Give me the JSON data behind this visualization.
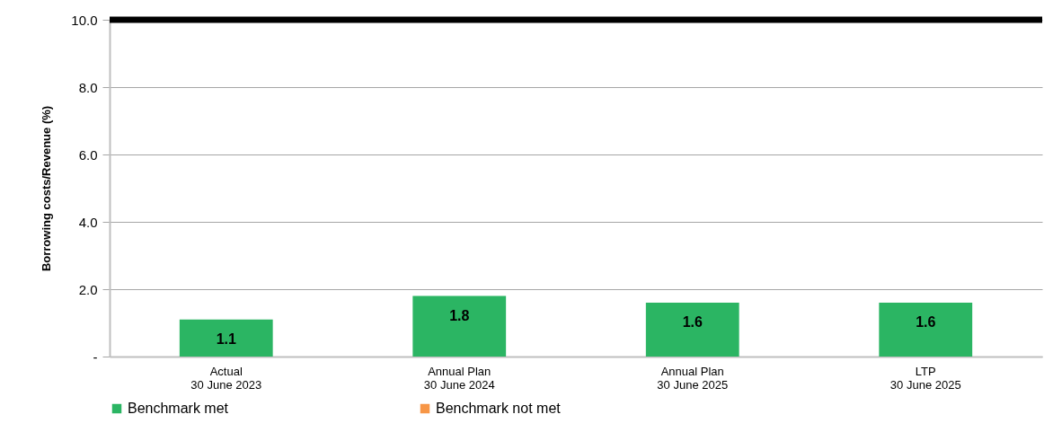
{
  "chart_data": {
    "type": "bar",
    "ylabel": "Borrowing costs/Revenue (%)",
    "categories": [
      "Actual\n30 June 2023",
      "Annual Plan\n30 June 2024",
      "Annual Plan\n30 June 2025",
      "LTP\n30 June 2025"
    ],
    "series": [
      {
        "name": "Benchmark met",
        "color": "#2bb563",
        "values": [
          1.1,
          1.8,
          1.6,
          1.6
        ]
      },
      {
        "name": "Benchmark not met",
        "color": "#f79646",
        "values": [
          null,
          null,
          null,
          null
        ]
      }
    ],
    "ylim": [
      0,
      10
    ],
    "yticks": [
      {
        "value": 0,
        "label": "-"
      },
      {
        "value": 2,
        "label": "2.0"
      },
      {
        "value": 4,
        "label": "4.0"
      },
      {
        "value": 6,
        "label": "6.0"
      },
      {
        "value": 8,
        "label": "8.0"
      },
      {
        "value": 10,
        "label": "10.0"
      }
    ],
    "ref_lines": [
      {
        "axis": "y",
        "value": 10,
        "label": null,
        "color": "#000000"
      }
    ],
    "grid": "y",
    "legend": "bottom",
    "data_labels": true
  }
}
